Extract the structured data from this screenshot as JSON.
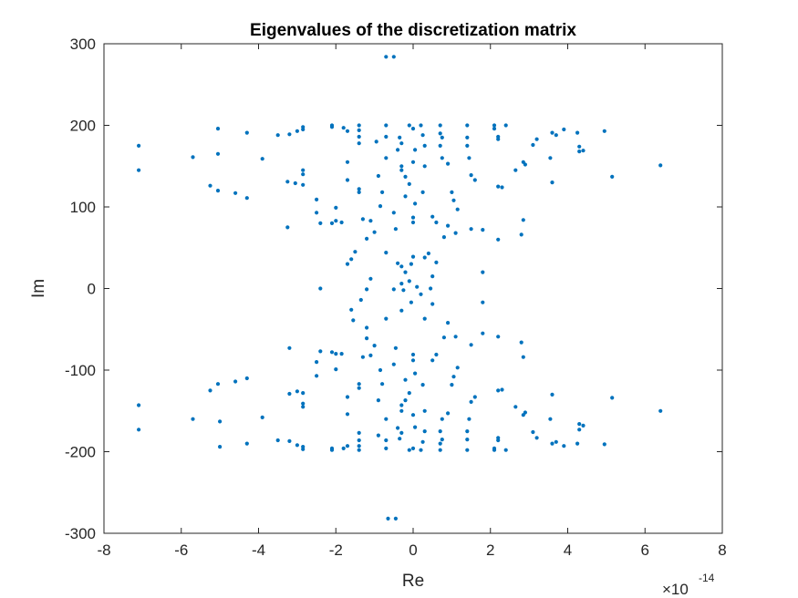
{
  "chart_data": {
    "type": "scatter",
    "title": "Eigenvalues of the discretization matrix",
    "xlabel": "Re",
    "ylabel": "Im",
    "xlim": [
      -8,
      8
    ],
    "ylim": [
      -300,
      300
    ],
    "x_scale_factor": {
      "base": "×10",
      "exponent": "-14"
    },
    "xticks": [
      "-8",
      "-6",
      "-4",
      "-2",
      "0",
      "2",
      "4",
      "6",
      "8"
    ],
    "yticks": [
      "300",
      "200",
      "100",
      "0",
      "-100",
      "-200",
      "-300"
    ],
    "grid": false,
    "marker_color": "#0072BD",
    "points": [
      [
        -0.7,
        284
      ],
      [
        -0.5,
        284
      ],
      [
        -7.1,
        175
      ],
      [
        -7.1,
        145
      ],
      [
        -5.7,
        161
      ],
      [
        -5.05,
        196
      ],
      [
        -5.05,
        165
      ],
      [
        -5.25,
        126
      ],
      [
        -5.05,
        120
      ],
      [
        -4.6,
        117
      ],
      [
        -4.3,
        111
      ],
      [
        -4.3,
        191
      ],
      [
        -3.9,
        159
      ],
      [
        -3.5,
        188
      ],
      [
        -3.25,
        131
      ],
      [
        -3.25,
        75
      ],
      [
        -3.05,
        129
      ],
      [
        -3.2,
        189
      ],
      [
        -3.0,
        193
      ],
      [
        -2.85,
        198
      ],
      [
        -2.85,
        195
      ],
      [
        -2.85,
        145
      ],
      [
        -2.85,
        140
      ],
      [
        -2.85,
        127
      ],
      [
        -2.5,
        109
      ],
      [
        -2.5,
        93
      ],
      [
        -2.4,
        80
      ],
      [
        -2.1,
        200
      ],
      [
        -2.1,
        198
      ],
      [
        -2.0,
        99
      ],
      [
        -2.0,
        83
      ],
      [
        -2.1,
        80
      ],
      [
        -1.85,
        81
      ],
      [
        -1.8,
        197
      ],
      [
        -1.7,
        193
      ],
      [
        -1.7,
        155
      ],
      [
        -1.7,
        133
      ],
      [
        -1.4,
        200
      ],
      [
        -1.4,
        194
      ],
      [
        -1.4,
        186
      ],
      [
        -1.4,
        178
      ],
      [
        -1.4,
        122
      ],
      [
        -1.4,
        118
      ],
      [
        -1.3,
        85
      ],
      [
        -1.2,
        61
      ],
      [
        -1.1,
        83
      ],
      [
        -1.0,
        69
      ],
      [
        -0.95,
        180
      ],
      [
        -0.9,
        138
      ],
      [
        -0.85,
        101
      ],
      [
        -0.8,
        118
      ],
      [
        -0.7,
        160
      ],
      [
        -0.7,
        186
      ],
      [
        -0.7,
        200
      ],
      [
        -0.5,
        93
      ],
      [
        -0.45,
        73
      ],
      [
        -0.4,
        170
      ],
      [
        -0.35,
        185
      ],
      [
        -0.3,
        178
      ],
      [
        -0.3,
        150
      ],
      [
        -0.3,
        145
      ],
      [
        -0.2,
        113
      ],
      [
        -0.2,
        137
      ],
      [
        -0.1,
        200
      ],
      [
        0.0,
        196
      ],
      [
        0.05,
        170
      ],
      [
        0.0,
        155
      ],
      [
        -0.1,
        128
      ],
      [
        0.05,
        104
      ],
      [
        0.0,
        87
      ],
      [
        0.0,
        81
      ],
      [
        0.2,
        200
      ],
      [
        0.25,
        188
      ],
      [
        0.3,
        175
      ],
      [
        0.3,
        150
      ],
      [
        0.25,
        118
      ],
      [
        0.5,
        88
      ],
      [
        0.6,
        81
      ],
      [
        0.7,
        190
      ],
      [
        0.7,
        200
      ],
      [
        0.75,
        185
      ],
      [
        0.7,
        175
      ],
      [
        0.75,
        160
      ],
      [
        0.9,
        153
      ],
      [
        1.0,
        118
      ],
      [
        1.05,
        108
      ],
      [
        1.15,
        97
      ],
      [
        1.4,
        200
      ],
      [
        1.4,
        175
      ],
      [
        1.4,
        185
      ],
      [
        1.45,
        160
      ],
      [
        1.5,
        139
      ],
      [
        1.6,
        133
      ],
      [
        2.1,
        200
      ],
      [
        2.1,
        196
      ],
      [
        2.2,
        186
      ],
      [
        2.2,
        183
      ],
      [
        2.2,
        125
      ],
      [
        2.3,
        124
      ],
      [
        2.4,
        200
      ],
      [
        2.65,
        145
      ],
      [
        2.85,
        155
      ],
      [
        2.85,
        84
      ],
      [
        2.8,
        66
      ],
      [
        2.9,
        152
      ],
      [
        3.1,
        176
      ],
      [
        3.2,
        183
      ],
      [
        3.55,
        160
      ],
      [
        3.6,
        191
      ],
      [
        3.6,
        130
      ],
      [
        3.7,
        188
      ],
      [
        3.9,
        195
      ],
      [
        4.25,
        191
      ],
      [
        4.3,
        174
      ],
      [
        4.4,
        169
      ],
      [
        4.3,
        168
      ],
      [
        4.95,
        193
      ],
      [
        5.15,
        137
      ],
      [
        6.4,
        151
      ],
      [
        -1.5,
        45
      ],
      [
        -1.6,
        36
      ],
      [
        -1.7,
        30
      ],
      [
        -1.1,
        12
      ],
      [
        -0.7,
        44
      ],
      [
        -0.3,
        27
      ],
      [
        -0.3,
        6
      ],
      [
        -0.25,
        -2
      ],
      [
        -0.2,
        20
      ],
      [
        -0.1,
        9
      ],
      [
        -0.05,
        30
      ],
      [
        0.1,
        2
      ],
      [
        0.2,
        -7
      ],
      [
        0.3,
        38
      ],
      [
        0.4,
        43
      ],
      [
        0.5,
        15
      ],
      [
        0.8,
        63
      ],
      [
        0.9,
        77
      ],
      [
        1.1,
        68
      ],
      [
        1.5,
        73
      ],
      [
        1.8,
        72
      ],
      [
        1.8,
        20
      ],
      [
        2.2,
        60
      ],
      [
        -2.4,
        0
      ],
      [
        -0.5,
        -1
      ],
      [
        -0.4,
        31
      ],
      [
        0.0,
        39
      ],
      [
        0.45,
        0
      ],
      [
        0.6,
        32
      ],
      [
        1.8,
        -17
      ],
      [
        -1.2,
        -1
      ],
      [
        -1.35,
        -14
      ],
      [
        -1.6,
        -26
      ],
      [
        -1.55,
        -39
      ],
      [
        -1.2,
        -48
      ],
      [
        -0.7,
        -37
      ],
      [
        -0.3,
        -27
      ],
      [
        -0.05,
        -17
      ],
      [
        0.3,
        -37
      ],
      [
        0.5,
        -19
      ],
      [
        0.8,
        -60
      ],
      [
        0.9,
        -42
      ],
      [
        1.1,
        -59
      ],
      [
        1.5,
        -69
      ],
      [
        1.8,
        -55
      ],
      [
        2.2,
        -59
      ],
      [
        -0.65,
        -282
      ],
      [
        -0.45,
        -282
      ],
      [
        -7.1,
        -173
      ],
      [
        -7.1,
        -143
      ],
      [
        -5.7,
        -160
      ],
      [
        -5.0,
        -194
      ],
      [
        -5.0,
        -163
      ],
      [
        -5.25,
        -125
      ],
      [
        -5.05,
        -117
      ],
      [
        -4.6,
        -114
      ],
      [
        -4.3,
        -110
      ],
      [
        -4.3,
        -190
      ],
      [
        -3.9,
        -158
      ],
      [
        -3.5,
        -186
      ],
      [
        -3.2,
        -129
      ],
      [
        -3.2,
        -73
      ],
      [
        -3.0,
        -126
      ],
      [
        -3.2,
        -187
      ],
      [
        -3.0,
        -192
      ],
      [
        -2.85,
        -197
      ],
      [
        -2.85,
        -194
      ],
      [
        -2.85,
        -145
      ],
      [
        -2.85,
        -141
      ],
      [
        -2.85,
        -128
      ],
      [
        -2.5,
        -107
      ],
      [
        -2.5,
        -90
      ],
      [
        -2.4,
        -77
      ],
      [
        -2.1,
        -198
      ],
      [
        -2.1,
        -196
      ],
      [
        -2.0,
        -99
      ],
      [
        -2.0,
        -80
      ],
      [
        -2.1,
        -78
      ],
      [
        -1.85,
        -80
      ],
      [
        -1.8,
        -196
      ],
      [
        -1.7,
        -193
      ],
      [
        -1.7,
        -154
      ],
      [
        -1.7,
        -133
      ],
      [
        -1.4,
        -198
      ],
      [
        -1.4,
        -193
      ],
      [
        -1.4,
        -186
      ],
      [
        -1.4,
        -177
      ],
      [
        -1.4,
        -122
      ],
      [
        -1.4,
        -117
      ],
      [
        -1.3,
        -84
      ],
      [
        -1.2,
        -61
      ],
      [
        -1.1,
        -82
      ],
      [
        -1.0,
        -70
      ],
      [
        -0.9,
        -180
      ],
      [
        -0.9,
        -137
      ],
      [
        -0.85,
        -100
      ],
      [
        -0.8,
        -117
      ],
      [
        -0.7,
        -160
      ],
      [
        -0.7,
        -186
      ],
      [
        -0.7,
        -196
      ],
      [
        -0.5,
        -93
      ],
      [
        -0.45,
        -73
      ],
      [
        -0.4,
        -171
      ],
      [
        -0.35,
        -184
      ],
      [
        -0.3,
        -177
      ],
      [
        -0.3,
        -150
      ],
      [
        -0.3,
        -143
      ],
      [
        -0.2,
        -112
      ],
      [
        -0.2,
        -137
      ],
      [
        -0.1,
        -198
      ],
      [
        0.0,
        -196
      ],
      [
        0.05,
        -170
      ],
      [
        0.0,
        -155
      ],
      [
        -0.1,
        -128
      ],
      [
        0.05,
        -104
      ],
      [
        0.0,
        -88
      ],
      [
        0.0,
        -81
      ],
      [
        0.2,
        -198
      ],
      [
        0.25,
        -188
      ],
      [
        0.3,
        -175
      ],
      [
        0.3,
        -150
      ],
      [
        0.25,
        -118
      ],
      [
        0.5,
        -88
      ],
      [
        0.6,
        -81
      ],
      [
        0.7,
        -190
      ],
      [
        0.7,
        -198
      ],
      [
        0.75,
        -185
      ],
      [
        0.7,
        -175
      ],
      [
        0.75,
        -160
      ],
      [
        0.9,
        -153
      ],
      [
        1.0,
        -118
      ],
      [
        1.05,
        -108
      ],
      [
        1.15,
        -97
      ],
      [
        1.4,
        -198
      ],
      [
        1.4,
        -175
      ],
      [
        1.4,
        -185
      ],
      [
        1.45,
        -160
      ],
      [
        1.5,
        -139
      ],
      [
        1.6,
        -133
      ],
      [
        2.1,
        -198
      ],
      [
        2.1,
        -196
      ],
      [
        2.2,
        -186
      ],
      [
        2.2,
        -183
      ],
      [
        2.2,
        -125
      ],
      [
        2.3,
        -124
      ],
      [
        2.4,
        -198
      ],
      [
        2.65,
        -145
      ],
      [
        2.85,
        -155
      ],
      [
        2.85,
        -84
      ],
      [
        2.8,
        -66
      ],
      [
        2.9,
        -152
      ],
      [
        3.1,
        -176
      ],
      [
        3.2,
        -183
      ],
      [
        3.55,
        -160
      ],
      [
        3.6,
        -190
      ],
      [
        3.6,
        -130
      ],
      [
        3.7,
        -188
      ],
      [
        3.9,
        -193
      ],
      [
        4.25,
        -190
      ],
      [
        4.3,
        -173
      ],
      [
        4.4,
        -168
      ],
      [
        4.3,
        -166
      ],
      [
        4.95,
        -191
      ],
      [
        5.15,
        -134
      ],
      [
        6.4,
        -150
      ]
    ]
  }
}
